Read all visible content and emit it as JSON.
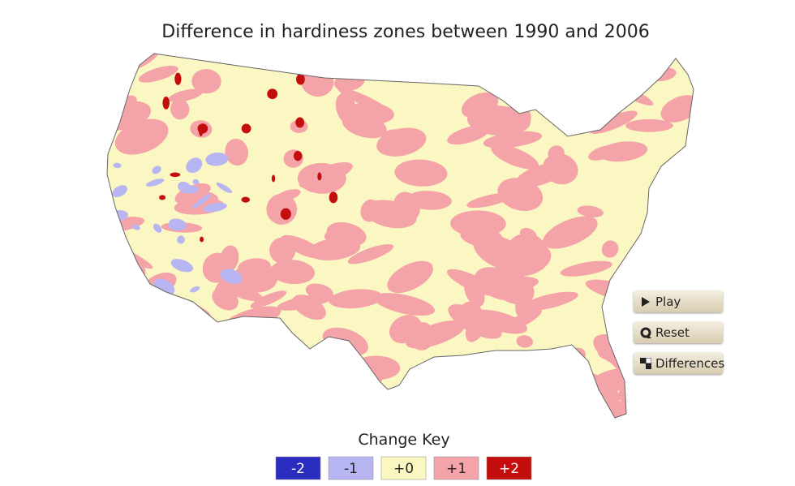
{
  "title": "Difference in hardiness zones between 1990 and 2006",
  "controls": [
    {
      "label": "Play"
    },
    {
      "label": "Reset"
    },
    {
      "label": "Differences"
    }
  ],
  "legend": {
    "title": "Change Key",
    "items": [
      {
        "label": "-2",
        "color": "#2a2dbf"
      },
      {
        "label": "-1",
        "color": "#b7b5f2"
      },
      {
        "label": "+0",
        "color": "#fbf7c2"
      },
      {
        "label": "+1",
        "color": "#f4a3a8"
      },
      {
        "label": "+2",
        "color": "#c40d0d"
      }
    ]
  }
}
